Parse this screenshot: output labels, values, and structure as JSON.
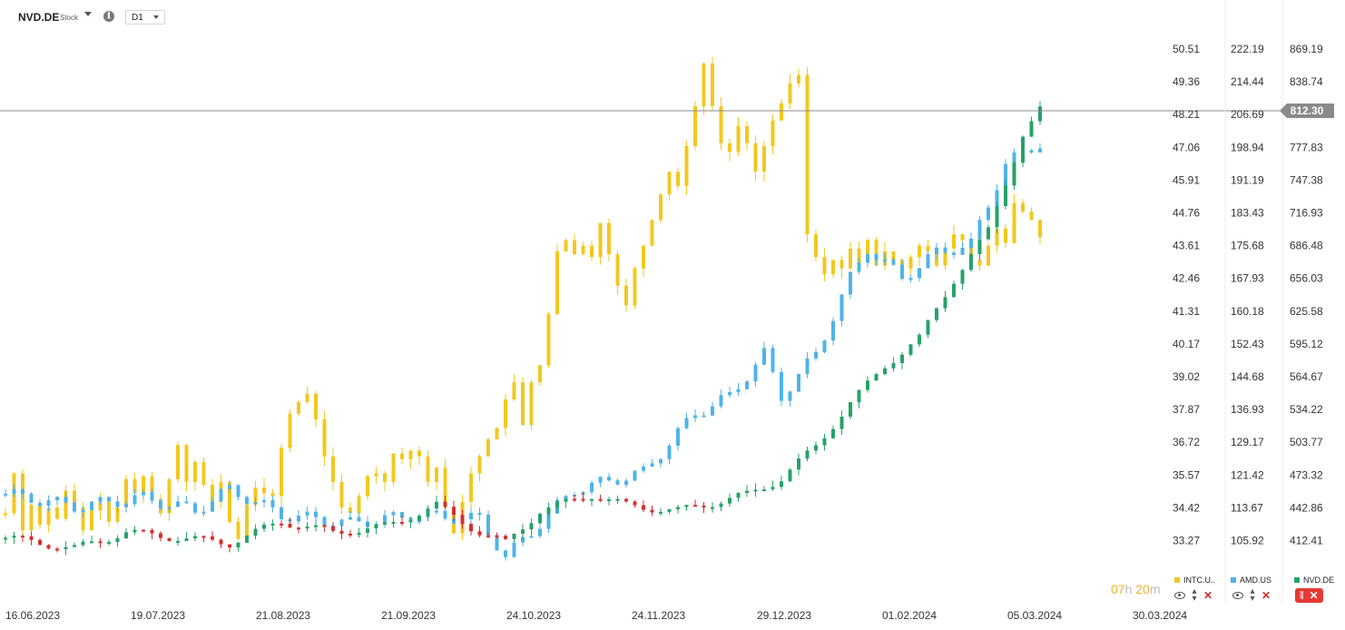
{
  "toolbar": {
    "symbol": "NVD.DE",
    "symbol_type": "Stock",
    "info_icon": "ℹ",
    "timeframe": "D1"
  },
  "countdown": {
    "hours": "07",
    "h": "h",
    "minutes": "20",
    "m": "m"
  },
  "legend": [
    {
      "name": "INTC.U..",
      "color": "#f2c81f"
    },
    {
      "name": "AMD.US",
      "color": "#4fb3e8"
    },
    {
      "name": "NVD.DE",
      "color": "#26a269"
    }
  ],
  "colors": {
    "intc": "#f2c81f",
    "amd": "#4fb3e8",
    "nvd_up": "#26a269",
    "nvd_down": "#d32f2f",
    "price_line": "#8a8a8a",
    "price_tag": "#8a8a8a",
    "accent": "#e53935"
  },
  "chart_data": {
    "type": "candlestick",
    "x_ticks": [
      "16.06.2023",
      "19.07.2023",
      "21.08.2023",
      "21.09.2023",
      "24.10.2023",
      "24.11.2023",
      "29.12.2023",
      "01.02.2024",
      "05.03.2024",
      "30.03.2024"
    ],
    "axes": [
      {
        "series": "INTC.US",
        "ticks": [
          "50.51",
          "49.36",
          "48.21",
          "47.06",
          "45.91",
          "44.76",
          "43.61",
          "42.46",
          "41.31",
          "40.17",
          "39.02",
          "37.87",
          "36.72",
          "35.57",
          "34.42",
          "33.27"
        ]
      },
      {
        "series": "AMD.US",
        "ticks": [
          "222.19",
          "214.44",
          "206.69",
          "198.94",
          "191.19",
          "183.43",
          "175.68",
          "167.93",
          "160.18",
          "152.43",
          "144.68",
          "136.93",
          "129.17",
          "121.42",
          "113.67",
          "105.92"
        ]
      },
      {
        "series": "NVD.DE",
        "ticks": [
          "869.19",
          "838.74",
          "812.30",
          "777.83",
          "747.38",
          "716.93",
          "686.48",
          "656.03",
          "625.58",
          "595.12",
          "564.67",
          "534.22",
          "503.77",
          "473.32",
          "442.86",
          "412.41"
        ]
      }
    ],
    "current_price": "812.30",
    "series": [
      {
        "name": "INTC.US",
        "closes": [
          34.2,
          35.6,
          33.6,
          34.5,
          33.8,
          34.4,
          34.0,
          35.0,
          34.4,
          33.6,
          34.3,
          34.6,
          33.9,
          34.4,
          35.4,
          34.9,
          35.5,
          34.7,
          34.2,
          35.4,
          36.6,
          35.3,
          36.0,
          35.2,
          34.6,
          35.3,
          33.9,
          33.3,
          34.5,
          35.1,
          34.9,
          34.8,
          36.5,
          37.7,
          38.1,
          38.4,
          37.5,
          36.2,
          35.3,
          34.4,
          34.2,
          34.8,
          35.5,
          35.6,
          35.3,
          36.3,
          36.1,
          36.4,
          36.2,
          35.3,
          35.8,
          34.4,
          33.5,
          34.6,
          35.6,
          36.2,
          36.8,
          37.2,
          38.2,
          38.8,
          37.3,
          38.8,
          39.4,
          41.2,
          43.4,
          43.8,
          43.3,
          43.6,
          43.2,
          44.4,
          43.3,
          42.2,
          41.5,
          42.8,
          43.6,
          44.5,
          45.4,
          46.2,
          45.7,
          47.1,
          48.5,
          50.0,
          48.5,
          47.2,
          46.9,
          47.8,
          47.2,
          46.2,
          47.1,
          48.0,
          48.6,
          49.3,
          49.6,
          44.0,
          43.2,
          42.6,
          43.1,
          42.8,
          43.5,
          43.0,
          43.8,
          42.9,
          43.4,
          43.1,
          42.8,
          43.2,
          43.6,
          43.4,
          42.9,
          43.5,
          44.0,
          43.8,
          43.1,
          42.9,
          43.6,
          44.2,
          43.7,
          45.1,
          44.8,
          44.5,
          43.9
        ],
        "colors": "#f2c81f"
      },
      {
        "name": "AMD.US",
        "closes": [],
        "colors": "#4fb3e8"
      },
      {
        "name": "NVD.DE",
        "closes": [],
        "colors": "#26a269"
      }
    ],
    "legend_position": "bottom-right",
    "grid": false
  }
}
